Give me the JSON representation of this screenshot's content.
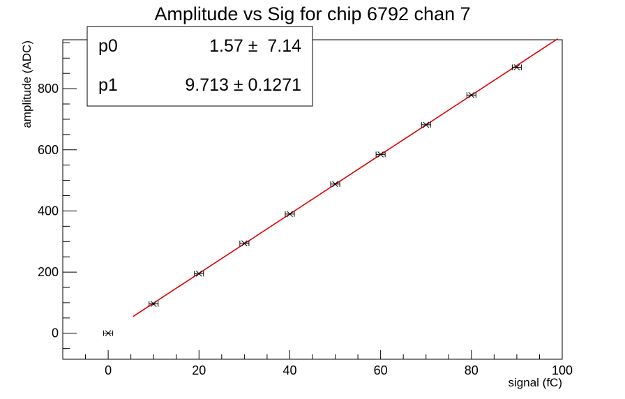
{
  "chart_data": {
    "type": "scatter",
    "title": "Amplitude vs Sig for chip 6792 chan 7",
    "xlabel": "signal (fC)",
    "ylabel": "amplitude (ADC)",
    "xlim": [
      -10,
      100
    ],
    "ylim": [
      -85,
      960
    ],
    "x_major_ticks": [
      0,
      20,
      40,
      60,
      80,
      100
    ],
    "y_major_ticks": [
      0,
      200,
      400,
      600,
      800
    ],
    "grid": false,
    "points": [
      {
        "x": 0,
        "y": 0,
        "xerr": 1,
        "yerr": 3
      },
      {
        "x": 10,
        "y": 96,
        "xerr": 1,
        "yerr": 3
      },
      {
        "x": 20,
        "y": 195,
        "xerr": 1,
        "yerr": 3
      },
      {
        "x": 30,
        "y": 294,
        "xerr": 1,
        "yerr": 3
      },
      {
        "x": 40,
        "y": 390,
        "xerr": 1,
        "yerr": 3
      },
      {
        "x": 50,
        "y": 488,
        "xerr": 1,
        "yerr": 3
      },
      {
        "x": 60,
        "y": 585,
        "xerr": 1,
        "yerr": 3
      },
      {
        "x": 70,
        "y": 682,
        "xerr": 1,
        "yerr": 3
      },
      {
        "x": 80,
        "y": 779,
        "xerr": 1,
        "yerr": 3
      },
      {
        "x": 90,
        "y": 870,
        "xerr": 1,
        "yerr": 3
      }
    ],
    "fit": {
      "type": "line",
      "color": "#e00000",
      "x_range": [
        5.5,
        99
      ],
      "p0": 1.57,
      "p1": 9.713
    },
    "stats_box": {
      "placement": "top-left",
      "rows": [
        {
          "name": "p0",
          "value": "1.57 ±  7.14"
        },
        {
          "name": "p1",
          "value": "9.713 ± 0.1271"
        }
      ]
    }
  }
}
